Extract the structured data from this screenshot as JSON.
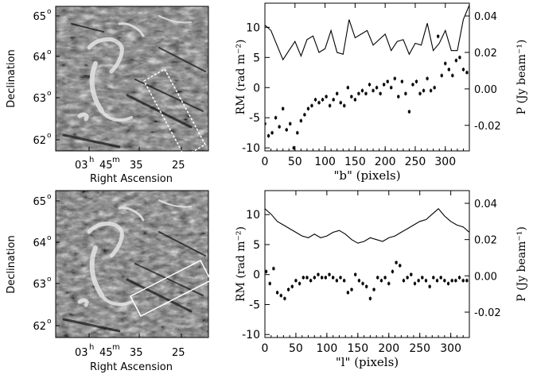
{
  "figure": {
    "panels": [
      {
        "map": {
          "ylabel": "Declination",
          "xlabel": "Right Ascension",
          "dec_ticks": [
            "65",
            "64",
            "63",
            "62"
          ],
          "deg_symbol": "o",
          "ra_tick_main": "03",
          "ra_h": "h",
          "ra_tick_mid": "45",
          "ra_m": "m",
          "ra_tick_35": "35",
          "ra_tick_25": "25",
          "box_color": "#ffffff"
        }
      },
      {
        "map": {
          "ylabel": "Declination",
          "xlabel": "Right Ascension",
          "dec_ticks": [
            "65",
            "64",
            "63",
            "62"
          ],
          "deg_symbol": "o",
          "ra_tick_main": "03",
          "ra_h": "h",
          "ra_tick_mid": "45",
          "ra_m": "m",
          "ra_tick_35": "35",
          "ra_tick_25": "25",
          "box_color": "#ffffff"
        }
      }
    ]
  },
  "chart_data": [
    {
      "type": "line",
      "xlabel": "\"b\" (pixels)",
      "ylabel_left": "RM (rad m⁻²)",
      "ylabel_right": "P (Jy beam⁻¹)",
      "xlim": [
        0,
        340
      ],
      "ylim_left": [
        -10.5,
        14
      ],
      "ylim_right": [
        -0.034,
        0.047
      ],
      "xticks": [
        0,
        50,
        100,
        150,
        200,
        250,
        300
      ],
      "yticks_left": [
        -10,
        -5,
        0,
        5,
        10
      ],
      "yticks_right": [
        "0.04",
        "0.02",
        "0.00",
        "-0.02"
      ],
      "yticks_right_values": [
        0.04,
        0.02,
        0.0,
        -0.02
      ],
      "series": [
        {
          "kind": "line-P-right-axis",
          "x": [
            0,
            10,
            20,
            30,
            40,
            50,
            60,
            70,
            80,
            90,
            100,
            110,
            120,
            130,
            140,
            150,
            160,
            170,
            180,
            190,
            200,
            210,
            220,
            230,
            240,
            250,
            260,
            270,
            280,
            290,
            300,
            310,
            320,
            330,
            340
          ],
          "y": [
            0.035,
            0.032,
            0.024,
            0.016,
            0.021,
            0.026,
            0.018,
            0.027,
            0.029,
            0.02,
            0.022,
            0.032,
            0.02,
            0.019,
            0.038,
            0.028,
            0.03,
            0.032,
            0.024,
            0.027,
            0.03,
            0.021,
            0.026,
            0.027,
            0.019,
            0.025,
            0.024,
            0.036,
            0.021,
            0.025,
            0.032,
            0.021,
            0.021,
            0.038,
            0.046
          ]
        },
        {
          "kind": "points-RM-left-axis",
          "x": [
            0,
            6,
            12,
            18,
            24,
            30,
            36,
            42,
            48,
            54,
            60,
            66,
            72,
            78,
            84,
            90,
            96,
            102,
            108,
            114,
            120,
            126,
            132,
            138,
            144,
            150,
            156,
            162,
            168,
            174,
            180,
            186,
            192,
            198,
            204,
            210,
            216,
            222,
            228,
            234,
            240,
            246,
            252,
            258,
            264,
            270,
            276,
            282,
            288,
            294,
            300,
            306,
            312,
            318,
            324,
            330,
            336
          ],
          "y": [
            -6,
            -8,
            -7.5,
            -5,
            -6.5,
            -3.5,
            -7,
            -6,
            -10,
            -7.5,
            -5.5,
            -4.5,
            -3.5,
            -3,
            -2,
            -2.5,
            -2,
            -1.5,
            -3,
            -2,
            -1,
            -2.5,
            -3,
            0,
            -1.5,
            -2,
            -1,
            -0.5,
            -1,
            0.5,
            -0.5,
            0,
            -1,
            0.5,
            1,
            0,
            1.5,
            -1.5,
            1,
            -1,
            -4,
            0.5,
            1,
            -1,
            -0.5,
            1.5,
            -0.5,
            0,
            8.5,
            2,
            4,
            3,
            2,
            4.5,
            5,
            3,
            2.5
          ]
        }
      ]
    },
    {
      "type": "line",
      "xlabel": "\"l\" (pixels)",
      "ylabel_left": "RM (rad m⁻²)",
      "ylabel_right": "P (Jy beam⁻¹)",
      "xlim": [
        0,
        330
      ],
      "ylim_left": [
        -10.5,
        14
      ],
      "ylim_right": [
        -0.034,
        0.047
      ],
      "xticks": [
        0,
        50,
        100,
        150,
        200,
        250,
        300
      ],
      "yticks_left": [
        -10,
        -5,
        0,
        5,
        10
      ],
      "yticks_right": [
        "0.04",
        "0.02",
        "0.00",
        "-0.02"
      ],
      "yticks_right_values": [
        0.04,
        0.02,
        0.0,
        -0.02
      ],
      "series": [
        {
          "kind": "line-P-right-axis",
          "x": [
            0,
            10,
            20,
            30,
            40,
            50,
            60,
            70,
            80,
            90,
            100,
            110,
            120,
            130,
            140,
            150,
            160,
            170,
            180,
            190,
            200,
            210,
            220,
            230,
            240,
            250,
            260,
            270,
            280,
            290,
            300,
            310,
            320,
            330
          ],
          "y": [
            0.037,
            0.034,
            0.03,
            0.028,
            0.026,
            0.024,
            0.022,
            0.021,
            0.023,
            0.021,
            0.022,
            0.024,
            0.025,
            0.023,
            0.02,
            0.018,
            0.019,
            0.021,
            0.02,
            0.019,
            0.021,
            0.022,
            0.024,
            0.026,
            0.028,
            0.03,
            0.031,
            0.034,
            0.037,
            0.033,
            0.03,
            0.028,
            0.027,
            0.024
          ]
        },
        {
          "kind": "points-RM-left-axis",
          "x": [
            2,
            8,
            14,
            20,
            26,
            32,
            38,
            44,
            50,
            56,
            62,
            68,
            74,
            80,
            86,
            92,
            98,
            104,
            110,
            116,
            122,
            128,
            134,
            140,
            146,
            152,
            158,
            164,
            170,
            176,
            182,
            188,
            194,
            200,
            206,
            212,
            218,
            224,
            230,
            236,
            242,
            248,
            254,
            260,
            266,
            272,
            278,
            284,
            290,
            296,
            302,
            308,
            314,
            320,
            326
          ],
          "y": [
            0.5,
            -1.5,
            1,
            -3,
            -3.5,
            -4,
            -2.5,
            -2,
            -1,
            -1.5,
            -0.5,
            -0.5,
            -1,
            -0.5,
            0,
            -0.5,
            -0.5,
            0,
            -0.5,
            -1,
            -0.5,
            -1,
            -3,
            -2.5,
            0,
            -1,
            -1.5,
            -2,
            -4,
            -2.5,
            -0.5,
            -1,
            -0.5,
            -1.5,
            0.5,
            2,
            1.5,
            -1,
            -0.5,
            0,
            -1.5,
            -1,
            -0.5,
            -1,
            -2,
            -0.5,
            -1,
            -0.5,
            -1,
            -1.5,
            -1,
            -1,
            -0.5,
            -1,
            -1
          ]
        }
      ]
    }
  ]
}
